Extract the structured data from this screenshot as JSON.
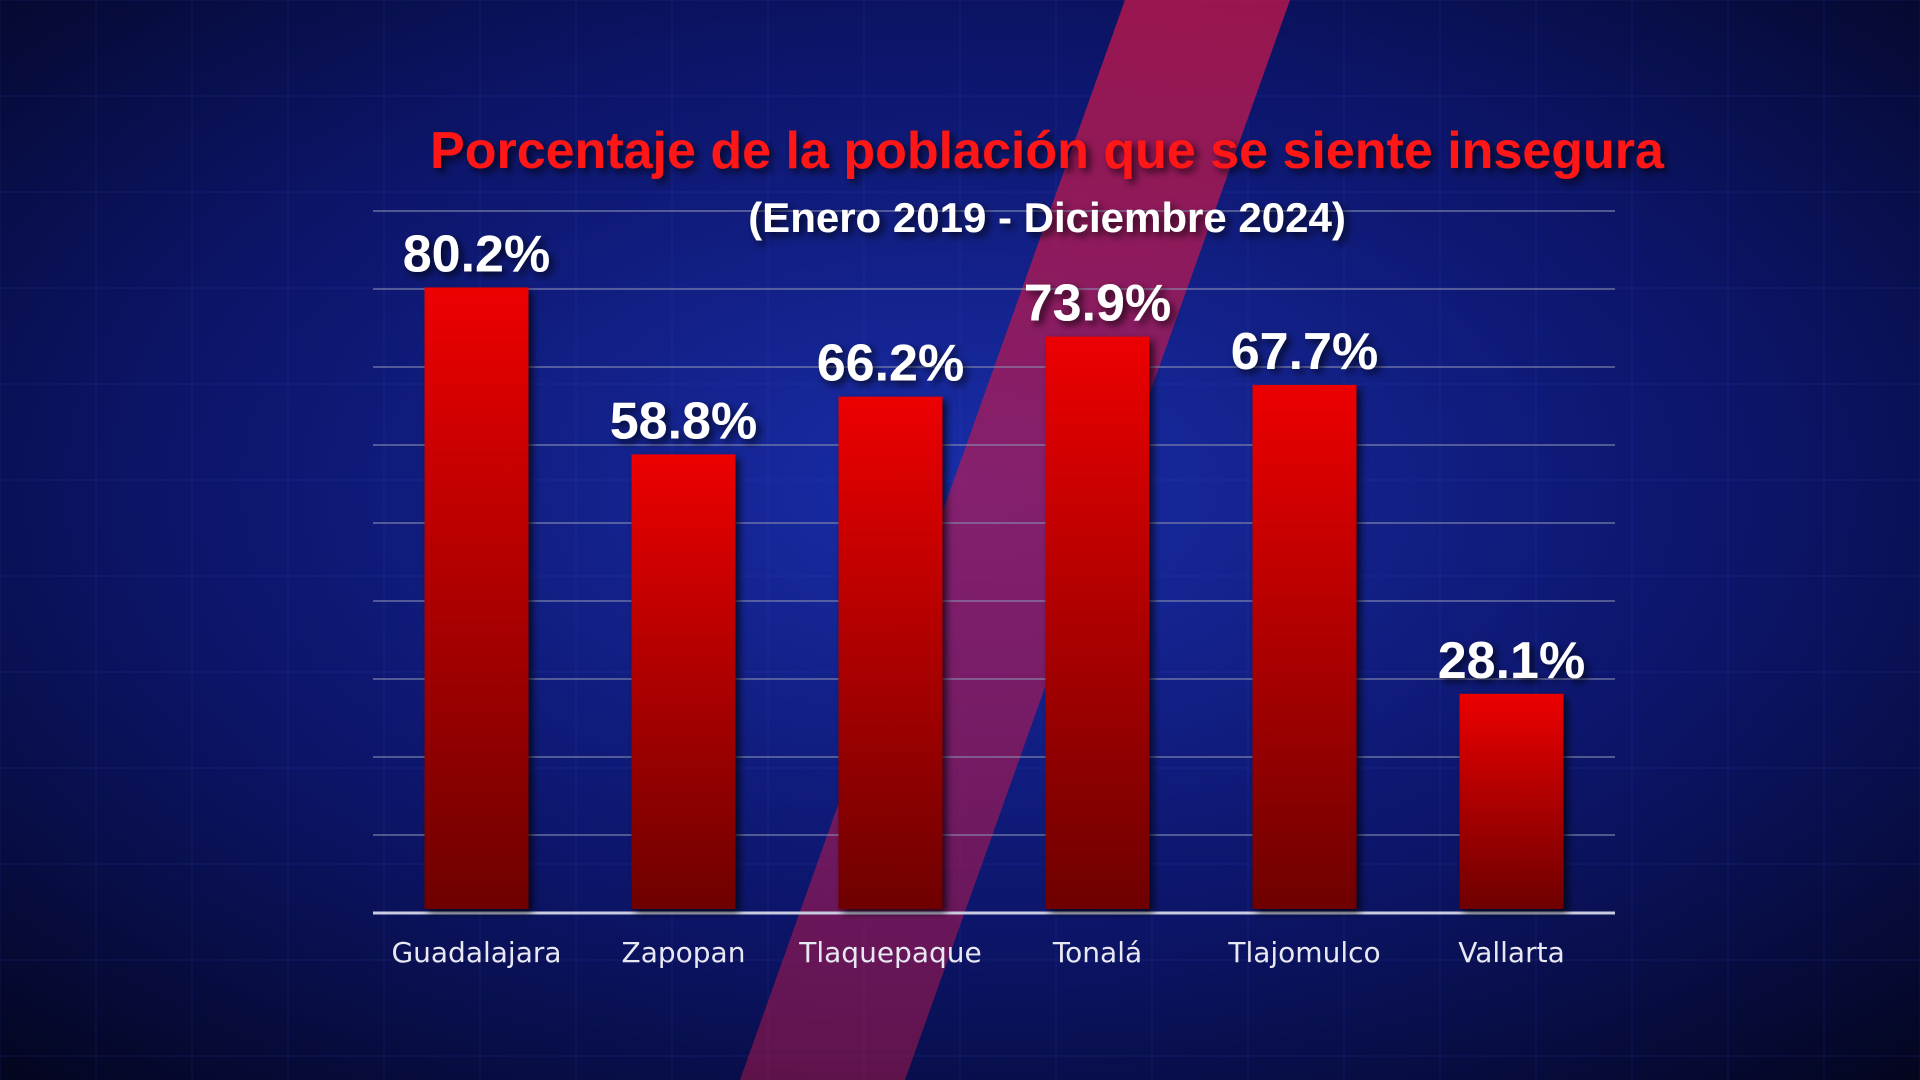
{
  "chart_data": {
    "type": "bar",
    "title": "Porcentaje de la población que se siente insegura",
    "subtitle": "(Enero 2019 - Diciembre 2024)",
    "categories": [
      "Guadalajara",
      "Zapopan",
      "Tlaquepaque",
      "Tonalá",
      "Tlajomulco",
      "Vallarta"
    ],
    "values": [
      80.2,
      58.8,
      66.2,
      73.9,
      67.7,
      28.1
    ],
    "value_labels": [
      "80.2%",
      "58.8%",
      "66.2%",
      "73.9%",
      "67.7%",
      "28.1%"
    ],
    "ylim": [
      0,
      90
    ],
    "grid": true,
    "colors": {
      "title": "#ff1414",
      "subtitle": "#ffffff",
      "bar_top": "#ec0505",
      "bar_bottom": "#6e0303",
      "value_label": "#ffffff",
      "category_label": "#e8e8f2",
      "grid": "#8a8fb0",
      "baseline": "#c9cce0",
      "background": "#05082a",
      "background_glow": "#1a2fb0",
      "diagonal_stripe": "#c8184a"
    }
  }
}
